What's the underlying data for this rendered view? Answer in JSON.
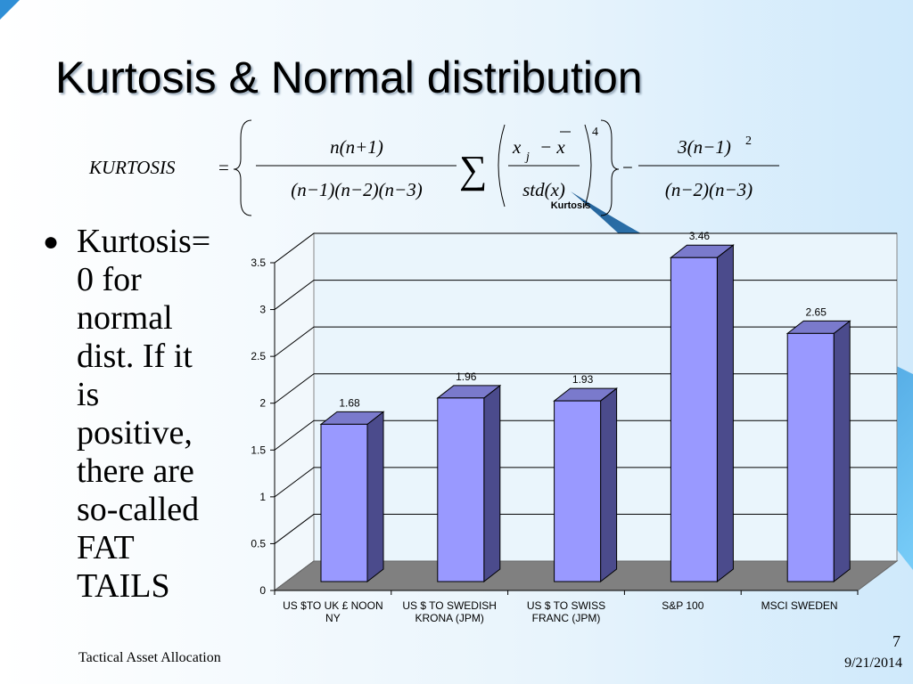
{
  "title": "Kurtosis & Normal distribution",
  "formula": {
    "lhs": "KURTOSIS",
    "equals": "=",
    "num1": "n(n+1)",
    "den1": "(n−1)(n−2)(n−3)",
    "sum": "∑",
    "num2": "x",
    "sub": "j",
    "minus_x": "− x",
    "den2": "std(x)",
    "power": "4",
    "minus": "−",
    "num3": "3(n−1)",
    "power2": "2",
    "den3": "(n−2)(n−3)"
  },
  "bullet": [
    "Kurtosis=",
    "0 for",
    "normal",
    "dist. If it",
    "is",
    "positive,",
    "there are",
    "so-called",
    "FAT",
    "TAILS"
  ],
  "footer": {
    "left": "Tactical Asset Allocation",
    "page": "7",
    "date": "9/21/2014"
  },
  "chart_data": {
    "type": "bar3d",
    "title": "Kurtosis",
    "categories": [
      "US $TO UK £ NOON NY",
      "US $ TO SWEDISH KRONA (JPM)",
      "US $ TO SWISS FRANC (JPM)",
      "S&P 100",
      "MSCI SWEDEN"
    ],
    "values": [
      1.68,
      1.96,
      1.93,
      3.46,
      2.65
    ],
    "color": "#9999ff",
    "ylim": [
      0,
      3.5
    ],
    "yticks": [
      0,
      0.5,
      1,
      1.5,
      2,
      2.5,
      3,
      3.5
    ],
    "grid": true
  }
}
